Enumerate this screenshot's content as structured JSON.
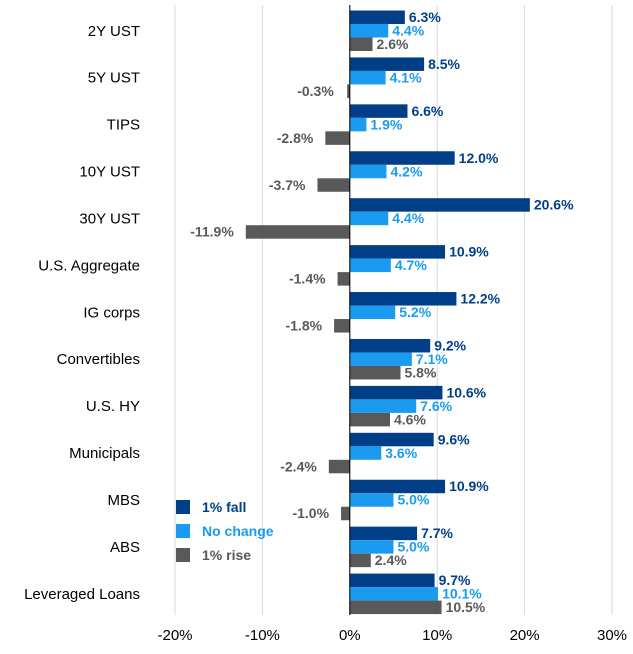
{
  "chart_data": {
    "type": "bar",
    "orientation": "horizontal",
    "categories": [
      "2Y UST",
      "5Y UST",
      "TIPS",
      "10Y UST",
      "30Y UST",
      "U.S. Aggregate",
      "IG corps",
      "Convertibles",
      "U.S. HY",
      "Municipals",
      "MBS",
      "ABS",
      "Leveraged Loans"
    ],
    "series": [
      {
        "name": "1% fall",
        "color": "#003f87",
        "values": [
          6.3,
          8.5,
          6.6,
          12.0,
          20.6,
          10.9,
          12.2,
          9.2,
          10.6,
          9.6,
          10.9,
          7.7,
          9.7
        ]
      },
      {
        "name": "No change",
        "color": "#1a9bf0",
        "values": [
          4.4,
          4.1,
          1.9,
          4.2,
          4.4,
          4.7,
          5.2,
          7.1,
          7.6,
          3.6,
          5.0,
          5.0,
          10.1
        ]
      },
      {
        "name": "1% rise",
        "color": "#595959",
        "values": [
          2.6,
          -0.3,
          -2.8,
          -3.7,
          -11.9,
          -1.4,
          -1.8,
          5.8,
          4.6,
          -2.4,
          -1.0,
          2.4,
          10.5
        ]
      }
    ],
    "value_labels": [
      [
        "6.3%",
        "8.5%",
        "6.6%",
        "12.0%",
        "20.6%",
        "10.9%",
        "12.2%",
        "9.2%",
        "10.6%",
        "9.6%",
        "10.9%",
        "7.7%",
        "9.7%"
      ],
      [
        "4.4%",
        "4.1%",
        "1.9%",
        "4.2%",
        "4.4%",
        "4.7%",
        "5.2%",
        "7.1%",
        "7.6%",
        "3.6%",
        "5.0%",
        "5.0%",
        "10.1%"
      ],
      [
        "2.6%",
        "-0.3%",
        "-2.8%",
        "-3.7%",
        "-11.9%",
        "-1.4%",
        "-1.8%",
        "5.8%",
        "4.6%",
        "-2.4%",
        "-1.0%",
        "2.4%",
        "10.5%"
      ]
    ],
    "xlim": [
      -20,
      30
    ],
    "xticks": [
      -20,
      -10,
      0,
      10,
      20,
      30
    ],
    "xtick_labels": [
      "-20%",
      "-10%",
      "0%",
      "10%",
      "20%",
      "30%"
    ],
    "grid": "vertical",
    "legend_position": "lower-left"
  }
}
